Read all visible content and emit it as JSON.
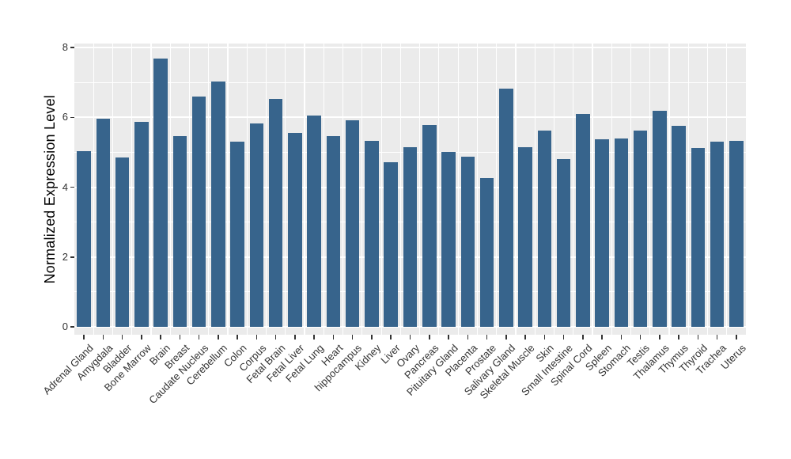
{
  "figure": {
    "background_color": "#FFFFFF",
    "panel_background_color": "#EBEBEB",
    "gridline_color": "#FFFFFF",
    "bar_color": "#37648C",
    "axis_text_color": "#333333",
    "axis_title_color": "#000000",
    "tick_mark_color": "#333333"
  },
  "chart_data": {
    "type": "bar",
    "title": "",
    "xlabel": "",
    "ylabel": "Normalized Expression Level",
    "categories": [
      "Adrenal Gland",
      "Amygdala",
      "Bladder",
      "Bone Marrow",
      "Brain",
      "Breast",
      "Caudate Nucleus",
      "Cerebellum",
      "Colon",
      "Corpus",
      "Fetal Brain",
      "Fetal Liver",
      "Fetal Lung",
      "Heart",
      "hippocampus",
      "Kidney",
      "Liver",
      "Ovary",
      "Pancreas",
      "Pituitary Gland",
      "Placenta",
      "Prostate",
      "Salivary Gland",
      "Skeletal Muscle",
      "Skin",
      "Small Intestine",
      "Spinal Cord",
      "Spleen",
      "Stomach",
      "Testis",
      "Thalamus",
      "Thymus",
      "Thyroid",
      "Trachea",
      "Uterus"
    ],
    "values": [
      5.02,
      5.95,
      4.86,
      5.88,
      7.68,
      5.46,
      6.59,
      7.02,
      5.3,
      5.83,
      6.52,
      5.56,
      6.06,
      5.46,
      5.92,
      5.32,
      4.71,
      5.14,
      5.77,
      5.01,
      4.87,
      4.26,
      6.83,
      5.15,
      5.63,
      4.81,
      6.1,
      5.38,
      5.39,
      5.61,
      6.18,
      5.76,
      5.13,
      5.3,
      5.33
    ],
    "yticks": [
      0,
      2,
      4,
      6,
      8
    ],
    "minor_gridlines_y": [
      1,
      3,
      5,
      7
    ],
    "ylim": [
      -0.23,
      8.11
    ],
    "grid": "on",
    "legend": "none",
    "x_label_rotation_deg": 45
  }
}
